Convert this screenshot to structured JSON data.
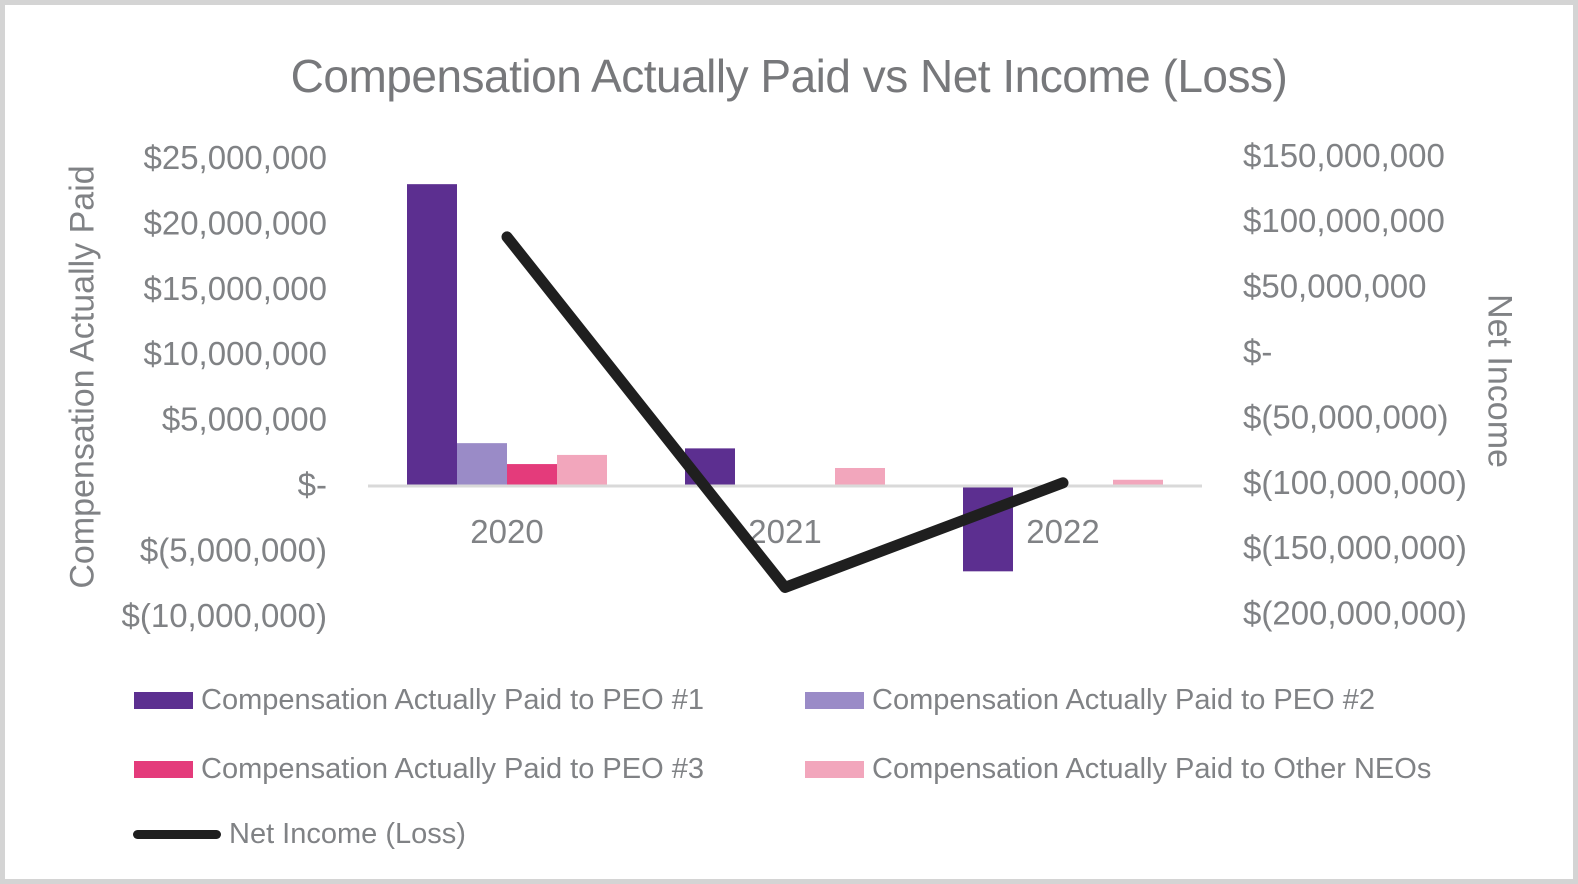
{
  "chart_data": {
    "type": "combo-bar-line",
    "title": "Compensation Actually Paid vs Net Income (Loss)",
    "categories": [
      "2020",
      "2021",
      "2022"
    ],
    "bar_series": [
      {
        "name": "Compensation Actually Paid to PEO #1",
        "color": "#5C2F90",
        "values": [
          23000000,
          2800000,
          -6600000
        ]
      },
      {
        "name": "Compensation Actually Paid to PEO #2",
        "color": "#9A8BC7",
        "values": [
          3200000,
          0,
          0
        ]
      },
      {
        "name": "Compensation Actually Paid to PEO #3",
        "color": "#E43B7B",
        "values": [
          1600000,
          0,
          0
        ]
      },
      {
        "name": "Compensation Actually Paid to Other NEOs",
        "color": "#F2A6BC",
        "values": [
          2300000,
          1300000,
          400000
        ]
      }
    ],
    "line_series": {
      "name": "Net Income (Loss)",
      "color": "#1F1F1F",
      "values": [
        88000000,
        -180000000,
        -100000000
      ]
    },
    "left_axis": {
      "title": "Compensation Actually Paid",
      "max": 25000000,
      "min": -10000000,
      "tick_step": 5000000,
      "tick_labels": [
        "$25,000,000",
        "$20,000,000",
        "$15,000,000",
        "$10,000,000",
        "$5,000,000",
        "$-",
        "$(5,000,000)",
        "$(10,000,000)"
      ]
    },
    "right_axis": {
      "title": "Net Income",
      "max": 150000000,
      "min": -200000000,
      "tick_step": 50000000,
      "tick_labels": [
        "$150,000,000",
        "$100,000,000",
        "$50,000,000",
        "$-",
        "$(50,000,000)",
        "$(100,000,000)",
        "$(150,000,000)",
        "$(200,000,000)"
      ]
    },
    "legend": {
      "row1_left": "Compensation Actually Paid to PEO #1",
      "row1_right": "Compensation Actually Paid to PEO #2",
      "row2_left": "Compensation Actually Paid to PEO #3",
      "row2_right": "Compensation Actually Paid to Other NEOs",
      "row3_left": "Net Income (Loss)"
    },
    "styles": {
      "title_color": "#77787B",
      "label_color": "#808285",
      "axis_line_color": "#D9D9D9",
      "line_color": "#1F1F1F",
      "background": "#FFFFFF",
      "border_color": "#D4D4D4"
    },
    "layout_hints": {
      "grid": "off",
      "legend_position": "bottom",
      "bar_axis": "left",
      "line_axis": "right"
    }
  }
}
